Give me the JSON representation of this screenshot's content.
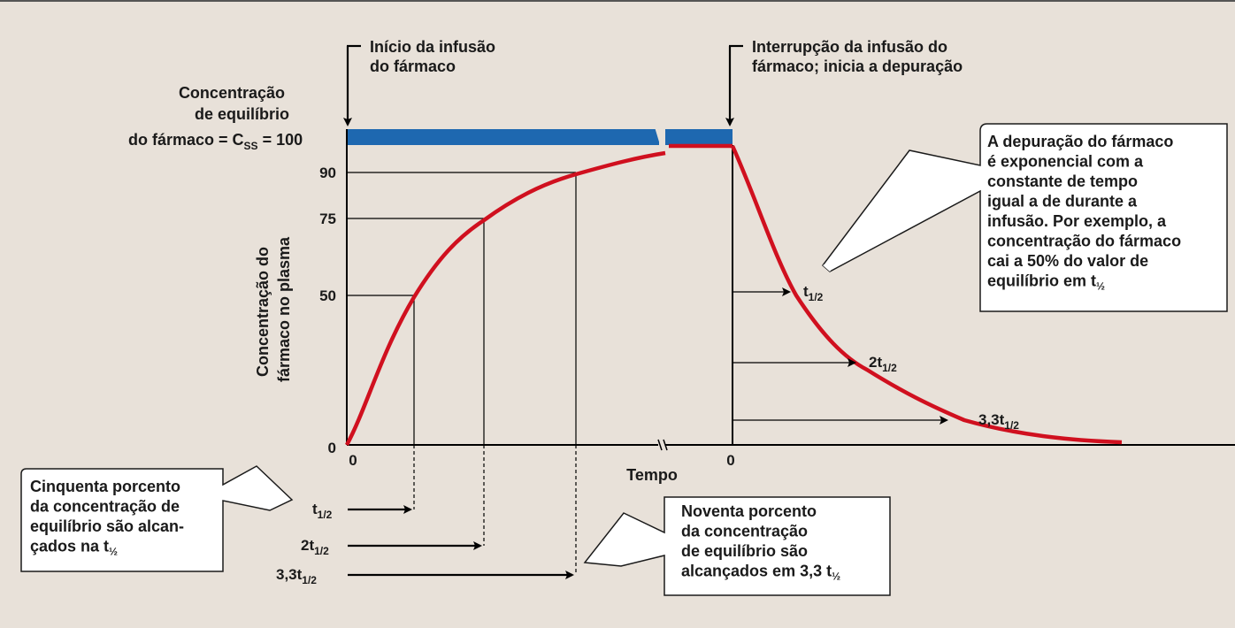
{
  "labels": {
    "start": [
      "Início da infusão",
      "do fármaco"
    ],
    "stop": [
      "Interrupção da infusão do",
      "fármaco; inicia a depuração"
    ],
    "css": [
      "Concentração",
      "de equilíbrio",
      "do fármaco = C",
      "SS",
      "= 100"
    ],
    "yaxis": [
      "Concentração do",
      "fármaco no plasma"
    ],
    "xaxis": "Tempo"
  },
  "ticks": {
    "y": [
      "90",
      "75",
      "50",
      "0"
    ],
    "x_left": "0",
    "x_right": "0"
  },
  "halflife": {
    "t": "t",
    "sub": "1/2",
    "two": "2t",
    "three": "3,3t"
  },
  "notes": {
    "depuracao": [
      "A depuração do fármaco",
      "é exponencial com a",
      "constante de tempo",
      "igual a de durante a",
      "infusão. Por exemplo, a",
      "concentração do fármaco",
      "cai a 50% do valor de",
      "equilíbrio em t"
    ],
    "cinquenta": [
      "Cinquenta porcento",
      "da concentração de",
      "equilíbrio são alcan-",
      "çados na t"
    ],
    "noventa": [
      "Noventa porcento",
      "da concentração",
      "de equilíbrio são",
      "alcançados em 3,3 t"
    ],
    "half_small": "½"
  },
  "colors": {
    "background": "#e8e1d9",
    "curve": "#d0101f",
    "steady_bar": "#1e68b0"
  }
}
